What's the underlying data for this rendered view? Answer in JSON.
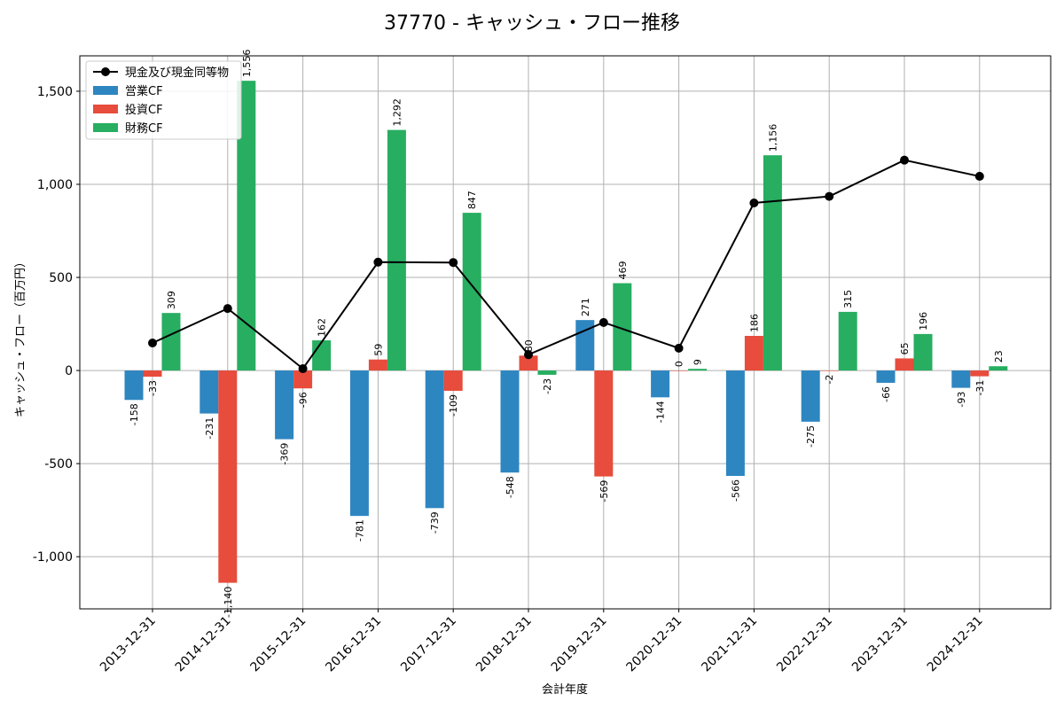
{
  "chart_data": {
    "type": "bar",
    "title": "37770 - キャッシュ・フロー推移",
    "xlabel": "会計年度",
    "ylabel": "キャッシュ・フロー（百万円）",
    "ylim": [
      -1280,
      1690
    ],
    "yticks": [
      -1000,
      -500,
      0,
      500,
      1000,
      1500
    ],
    "ytick_labels": [
      "-1,000",
      "-500",
      "0",
      "500",
      "1,000",
      "1,500"
    ],
    "grid": true,
    "legend_position": "top-left",
    "categories": [
      "2013-12-31",
      "2014-12-31",
      "2015-12-31",
      "2016-12-31",
      "2017-12-31",
      "2018-12-31",
      "2019-12-31",
      "2020-12-31",
      "2021-12-31",
      "2022-12-31",
      "2023-12-31",
      "2024-12-31"
    ],
    "series": [
      {
        "name": "営業CF",
        "kind": "bar",
        "color": "#2e86c1",
        "values": [
          -158,
          -231,
          -369,
          -781,
          -739,
          -548,
          271,
          -144,
          -566,
          -275,
          -66,
          -93
        ],
        "labels": [
          "-158",
          "-231",
          "-369",
          "-781",
          "-739",
          "-548",
          "271",
          "-144",
          "-566",
          "-275",
          "-66",
          "-93"
        ]
      },
      {
        "name": "投資CF",
        "kind": "bar",
        "color": "#e74c3c",
        "values": [
          -33,
          -1140,
          -96,
          59,
          -109,
          80,
          -569,
          0,
          186,
          -2,
          65,
          -31
        ],
        "labels": [
          "-33",
          "-1,140",
          "-96",
          "59",
          "-109",
          "80",
          "-569",
          "0",
          "186",
          "-2",
          "65",
          "-31"
        ]
      },
      {
        "name": "財務CF",
        "kind": "bar",
        "color": "#27ae60",
        "values": [
          309,
          1556,
          162,
          1292,
          847,
          -23,
          469,
          9,
          1156,
          315,
          196,
          23
        ],
        "labels": [
          "309",
          "1,556",
          "162",
          "1,292",
          "847",
          "-23",
          "469",
          "9",
          "1,156",
          "315",
          "196",
          "23"
        ]
      },
      {
        "name": "現金及び現金同等物",
        "kind": "line",
        "color": "#000000",
        "values": [
          148,
          333,
          10,
          582,
          580,
          85,
          258,
          120,
          900,
          935,
          1130,
          1043
        ]
      }
    ]
  }
}
